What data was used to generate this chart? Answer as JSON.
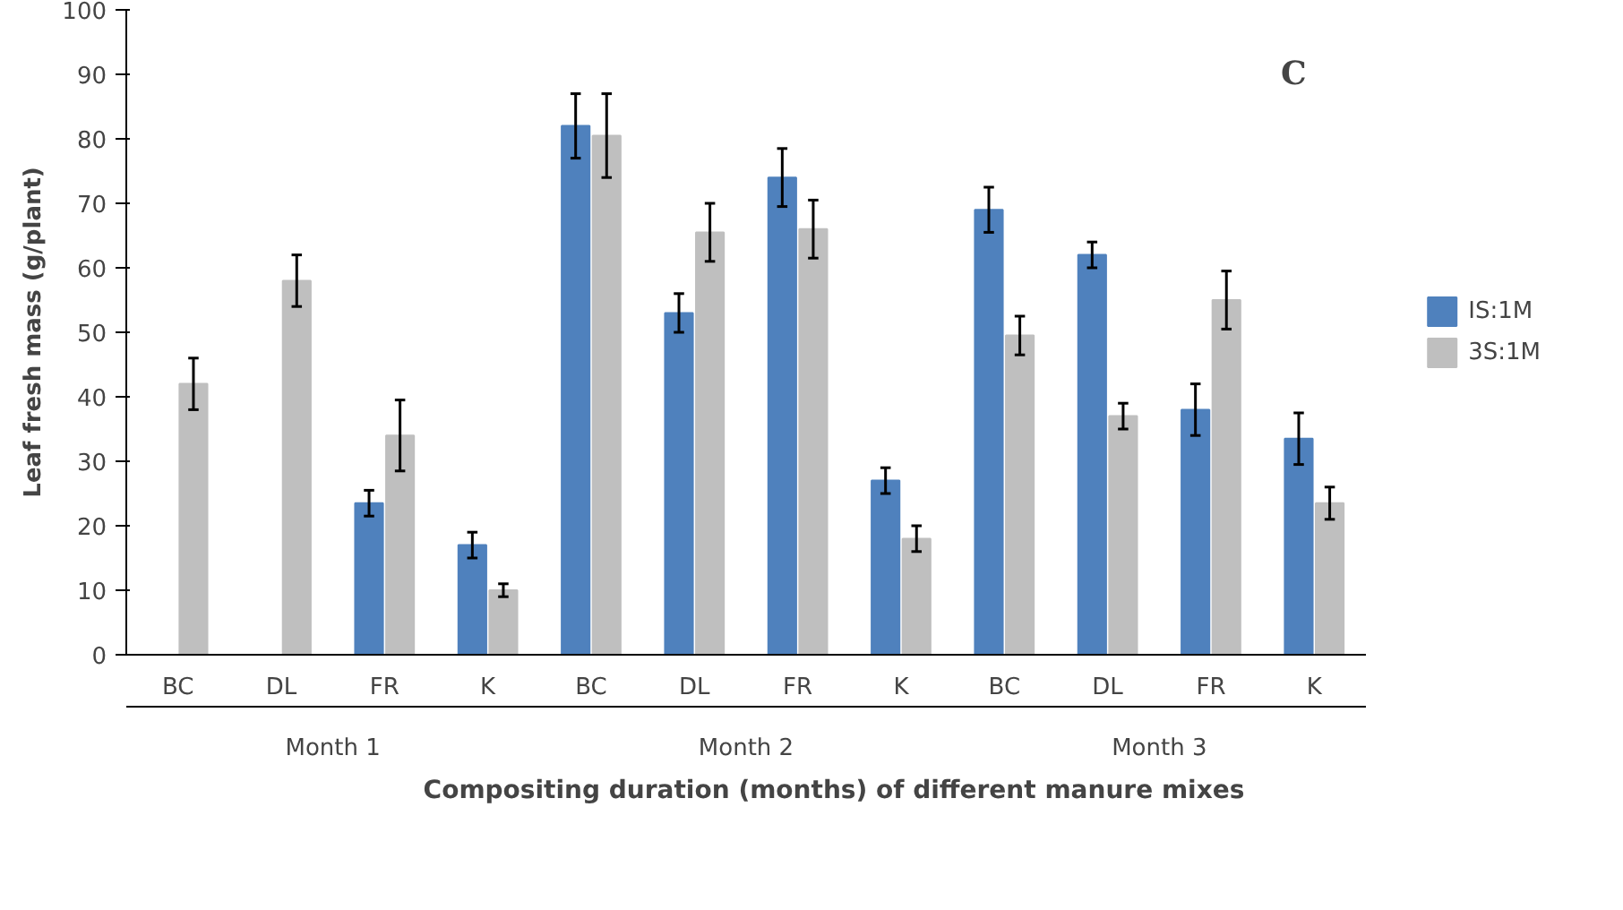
{
  "chart_data": {
    "type": "bar",
    "ylabel": "Leaf fresh mass (g/plant)",
    "xlabel": "Compositing duration (months) of different manure mixes",
    "categories": [
      "BC",
      "DL",
      "FR",
      "K",
      "BC",
      "DL",
      "FR",
      "K",
      "BC",
      "DL",
      "FR",
      "K"
    ],
    "series": [
      {
        "name": "IS:1M",
        "color": "#4f81bd",
        "values": [
          null,
          null,
          23.5,
          17,
          82,
          53,
          74,
          27,
          69,
          62,
          38,
          33.5
        ],
        "errors": [
          null,
          null,
          2,
          2,
          5,
          3,
          4.5,
          2,
          3.5,
          2,
          4,
          4
        ]
      },
      {
        "name": "3S:1M",
        "color": "#bfbfbf",
        "values": [
          42,
          58,
          34,
          10,
          80.5,
          65.5,
          66,
          18,
          49.5,
          37,
          55,
          23.5
        ],
        "errors": [
          4,
          4,
          5.5,
          1,
          6.5,
          4.5,
          4.5,
          2,
          3,
          2,
          4.5,
          2.5
        ]
      }
    ],
    "ylim": [
      0,
      100
    ],
    "yticks": [
      0,
      10,
      20,
      30,
      40,
      50,
      60,
      70,
      80,
      90,
      100
    ],
    "grid": false,
    "legend": "right",
    "annotations": [
      "C",
      "Month 1",
      "Month 2",
      "Month 3"
    ]
  }
}
